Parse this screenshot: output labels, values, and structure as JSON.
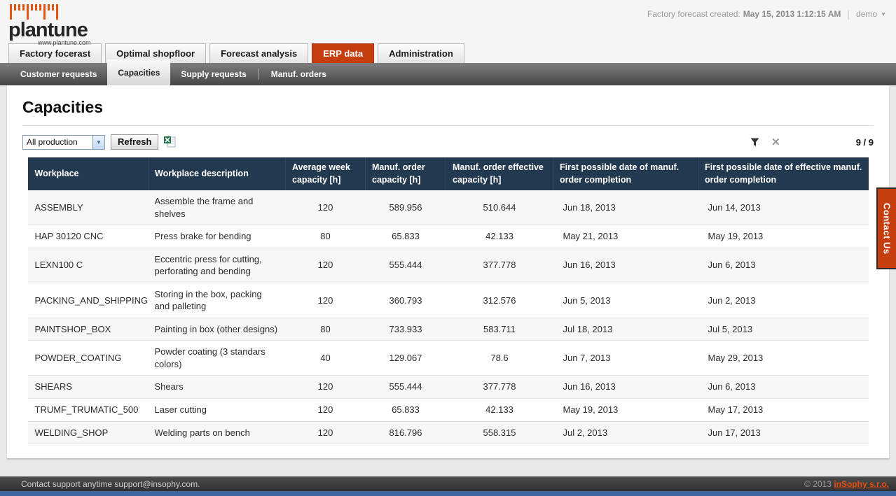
{
  "header": {
    "brand": "plantune",
    "brand_url": "www.plantune.com",
    "forecast_label": "Factory forecast created:",
    "forecast_value": "May 15, 2013 1:12:15 AM",
    "user_name": "demo"
  },
  "main_tabs": [
    {
      "label": "Factory focerast",
      "active": false
    },
    {
      "label": "Optimal shopfloor",
      "active": false
    },
    {
      "label": "Forecast analysis",
      "active": false
    },
    {
      "label": "ERP data",
      "active": true
    },
    {
      "label": "Administration",
      "active": false
    }
  ],
  "sub_tabs": [
    {
      "label": "Customer requests",
      "active": false
    },
    {
      "label": "Capacities",
      "active": true
    },
    {
      "label": "Supply requests",
      "active": false
    },
    {
      "label": "Manuf. orders",
      "active": false
    }
  ],
  "page": {
    "title": "Capacities",
    "production_filter_value": "All production",
    "refresh_label": "Refresh",
    "counter": "9 / 9",
    "clear_filter_glyph": "✕"
  },
  "icons": {
    "help": "lightbulb-icon",
    "export": "excel-export-icon",
    "filter": "funnel-icon",
    "clear_filter": "x-icon",
    "user_menu_arrow": "▼"
  },
  "table": {
    "columns": [
      "Workplace",
      "Workplace description",
      "Average week capacity [h]",
      "Manuf. order capacity [h]",
      "Manuf. order effective capacity [h]",
      "First possible date of manuf. order completion",
      "First possible date of effective manuf. order completion"
    ],
    "column_keys": [
      "workplace",
      "description",
      "avg-week-capacity",
      "order-capacity",
      "order-effective-capacity",
      "first-date-completion",
      "first-date-effective-completion"
    ],
    "rows": [
      [
        "ASSEMBLY",
        "Assemble the frame and shelves",
        "120",
        "589.956",
        "510.644",
        "Jun 18, 2013",
        "Jun 14, 2013"
      ],
      [
        "HAP 30120 CNC",
        "Press brake for bending",
        "80",
        "65.833",
        "42.133",
        "May 21, 2013",
        "May 19, 2013"
      ],
      [
        "LEXN100 C",
        "Eccentric press for cutting, perforating and bending",
        "120",
        "555.444",
        "377.778",
        "Jun 16, 2013",
        "Jun 6, 2013"
      ],
      [
        "PACKING_AND_SHIPPING",
        "Storing in the box, packing and palleting",
        "120",
        "360.793",
        "312.576",
        "Jun 5, 2013",
        "Jun 2, 2013"
      ],
      [
        "PAINTSHOP_BOX",
        "Painting in box (other designs)",
        "80",
        "733.933",
        "583.711",
        "Jul 18, 2013",
        "Jul 5, 2013"
      ],
      [
        "POWDER_COATING",
        "Powder coating (3 standars colors)",
        "40",
        "129.067",
        "78.6",
        "Jun 7, 2013",
        "May 29, 2013"
      ],
      [
        "SHEARS",
        "Shears",
        "120",
        "555.444",
        "377.778",
        "Jun 16, 2013",
        "Jun 6, 2013"
      ],
      [
        "TRUMF_TRUMATIC_500",
        "Laser cutting",
        "120",
        "65.833",
        "42.133",
        "May 19, 2013",
        "May 17, 2013"
      ],
      [
        "WELDING_SHOP",
        "Welding parts on bench",
        "120",
        "816.796",
        "558.315",
        "Jul 2, 2013",
        "Jun 17, 2013"
      ]
    ]
  },
  "contact_us_label": "Contact Us",
  "footer": {
    "support_text": "Contact support anytime support@insophy.com.",
    "copyright": "© 2013",
    "company_link": "inSophy s.r.o."
  },
  "colors": {
    "accent_orange": "#c63d0f",
    "link_orange": "#e8500f",
    "table_header_navy": "#23394f",
    "subtab_bar_gray": "#5a5a5a",
    "bottom_strip_blue": "#3e659e"
  }
}
